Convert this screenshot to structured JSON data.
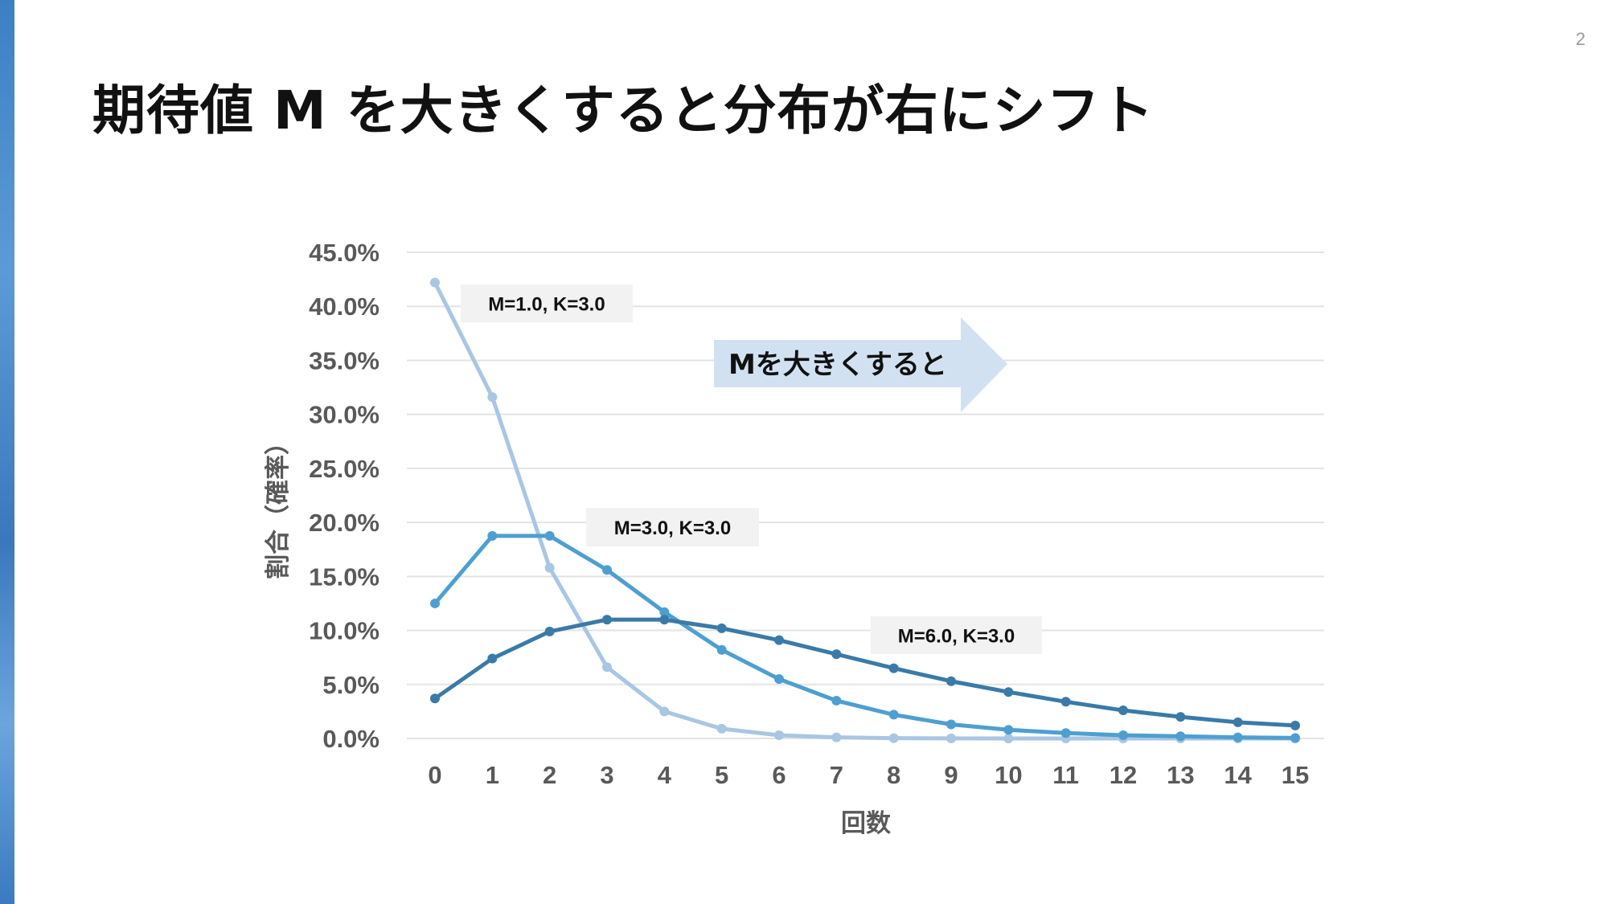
{
  "page_number": "2",
  "title": "期待値 M を大きくすると分布が右にシフト",
  "arrow_label": "Mを大きくすると",
  "colors": {
    "accent_bar": "#3d7fc4",
    "series": [
      "#a9c6e3",
      "#4e9fd1",
      "#3a7aa8"
    ],
    "arrow": "#d2e1f2"
  },
  "chart_data": {
    "type": "line",
    "xlabel": "回数",
    "ylabel": "割合（確率）",
    "x": [
      0,
      1,
      2,
      3,
      4,
      5,
      6,
      7,
      8,
      9,
      10,
      11,
      12,
      13,
      14,
      15
    ],
    "ylim": [
      0,
      45
    ],
    "yticks": [
      "0.0%",
      "5.0%",
      "10.0%",
      "15.0%",
      "20.0%",
      "25.0%",
      "30.0%",
      "35.0%",
      "40.0%",
      "45.0%"
    ],
    "grid": true,
    "series": [
      {
        "name": "M=1.0, K=3.0",
        "values": [
          42.2,
          31.6,
          15.8,
          6.6,
          2.5,
          0.9,
          0.3,
          0.1,
          0.03,
          0.01,
          0,
          0,
          0,
          0,
          0,
          0
        ]
      },
      {
        "name": "M=3.0, K=3.0",
        "values": [
          12.5,
          18.75,
          18.75,
          15.6,
          11.7,
          8.2,
          5.5,
          3.5,
          2.2,
          1.3,
          0.8,
          0.5,
          0.3,
          0.2,
          0.1,
          0.05
        ]
      },
      {
        "name": "M=6.0, K=3.0",
        "values": [
          3.7,
          7.4,
          9.9,
          11.0,
          11.0,
          10.2,
          9.1,
          7.8,
          6.5,
          5.3,
          4.3,
          3.4,
          2.6,
          2.0,
          1.5,
          1.2
        ]
      }
    ]
  }
}
